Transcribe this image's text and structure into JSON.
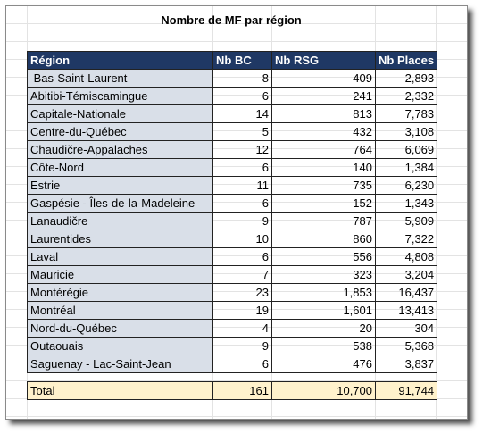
{
  "title": "Nombre de MF par région",
  "table": {
    "header": [
      "Région",
      "Nb BC",
      "Nb RSG",
      "Nb Places"
    ],
    "rows": [
      [
        " Bas-Saint-Laurent",
        "8",
        "409",
        "2,893"
      ],
      [
        "Abitibi-Témiscamingue",
        "6",
        "241",
        "2,332"
      ],
      [
        "Capitale-Nationale",
        "14",
        "813",
        "7,783"
      ],
      [
        "Centre-du-Québec",
        "5",
        "432",
        "3,108"
      ],
      [
        "Chaudičre-Appalaches",
        "12",
        "764",
        "6,069"
      ],
      [
        "Côte-Nord",
        "6",
        "140",
        "1,384"
      ],
      [
        "Estrie",
        "11",
        "735",
        "6,230"
      ],
      [
        "Gaspésie - Îles-de-la-Madeleine",
        "6",
        "152",
        "1,343"
      ],
      [
        "Lanaudičre",
        "9",
        "787",
        "5,909"
      ],
      [
        "Laurentides",
        "10",
        "860",
        "7,322"
      ],
      [
        "Laval",
        "6",
        "556",
        "4,808"
      ],
      [
        "Mauricie",
        "7",
        "323",
        "3,204"
      ],
      [
        "Montérégie",
        "23",
        "1,853",
        "16,437"
      ],
      [
        "Montréal",
        "19",
        "1,601",
        "13,413"
      ],
      [
        "Nord-du-Québec",
        "4",
        "20",
        "304"
      ],
      [
        "Outaouais",
        "9",
        "538",
        "5,368"
      ],
      [
        "Saguenay - Lac-Saint-Jean",
        "6",
        "476",
        "3,837"
      ]
    ],
    "total": [
      "Total",
      "161",
      "10,700",
      "91,744"
    ]
  }
}
